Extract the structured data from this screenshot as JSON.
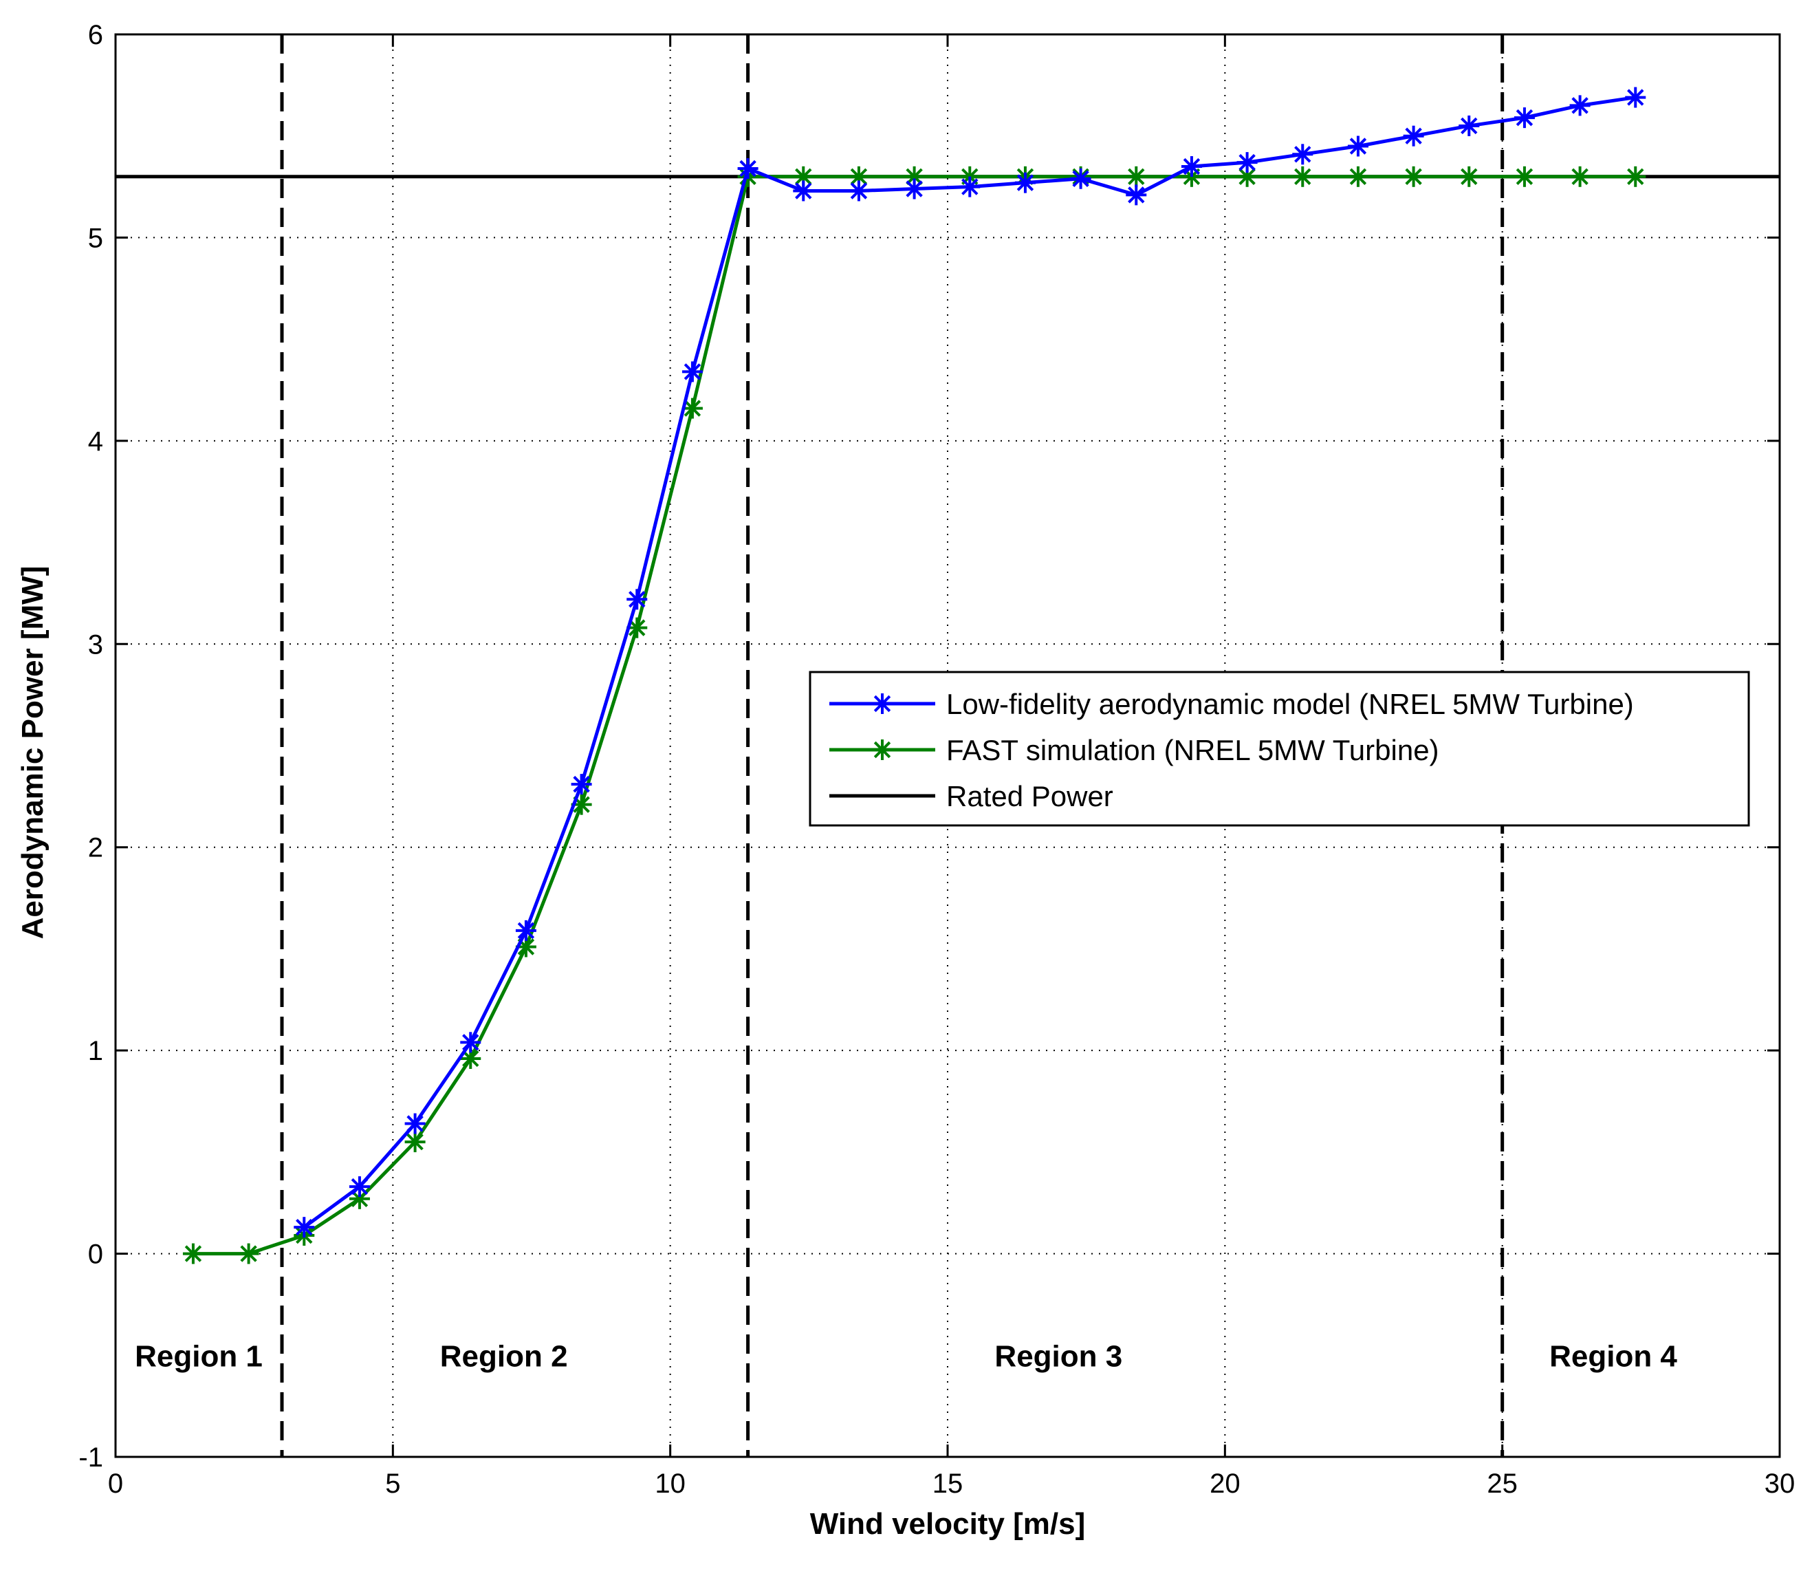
{
  "chart_data": {
    "type": "line",
    "xlabel": "Wind velocity [m/s]",
    "ylabel": "Aerodynamic Power [MW]",
    "xlim": [
      0,
      30
    ],
    "ylim": [
      -1,
      6
    ],
    "xticks": [
      0,
      5,
      10,
      15,
      20,
      25,
      30
    ],
    "yticks": [
      -1,
      0,
      1,
      2,
      3,
      4,
      5,
      6
    ],
    "grid": "dotted",
    "legend_position": "center-right",
    "series": [
      {
        "name": "Low-fidelity aerodynamic model (NREL 5MW Turbine)",
        "color": "#0000ff",
        "marker": "star",
        "x": [
          3.4,
          4.4,
          5.4,
          6.4,
          7.4,
          8.4,
          9.4,
          10.4,
          11.4,
          12.4,
          13.4,
          14.4,
          15.4,
          16.4,
          17.4,
          18.4,
          19.4,
          20.4,
          21.4,
          22.4,
          23.4,
          24.4,
          25.4,
          26.4,
          27.4
        ],
        "y": [
          0.13,
          0.33,
          0.64,
          1.04,
          1.59,
          2.31,
          3.22,
          4.34,
          5.34,
          5.23,
          5.23,
          5.24,
          5.25,
          5.27,
          5.29,
          5.21,
          5.35,
          5.37,
          5.41,
          5.45,
          5.5,
          5.55,
          5.59,
          5.65,
          5.69
        ]
      },
      {
        "name": "FAST simulation (NREL 5MW Turbine)",
        "color": "#008000",
        "marker": "star",
        "x": [
          1.4,
          2.4,
          3.4,
          4.4,
          5.4,
          6.4,
          7.4,
          8.4,
          9.4,
          10.4,
          11.4,
          12.4,
          13.4,
          14.4,
          15.4,
          16.4,
          17.4,
          18.4,
          19.4,
          20.4,
          21.4,
          22.4,
          23.4,
          24.4,
          25.4,
          26.4,
          27.4
        ],
        "y": [
          0.0,
          0.0,
          0.09,
          0.27,
          0.55,
          0.96,
          1.51,
          2.21,
          3.08,
          4.16,
          5.3,
          5.3,
          5.3,
          5.3,
          5.3,
          5.3,
          5.3,
          5.3,
          5.3,
          5.3,
          5.3,
          5.3,
          5.3,
          5.3,
          5.3,
          5.3,
          5.3
        ]
      },
      {
        "name": "Rated Power",
        "color": "#000000",
        "marker": "none",
        "x": [
          0,
          30
        ],
        "y": [
          5.3,
          5.3
        ]
      }
    ],
    "region_boundaries": [
      3,
      11.4,
      25
    ],
    "regions": [
      {
        "label": "Region 1",
        "x": 1.5
      },
      {
        "label": "Region 2",
        "x": 7
      },
      {
        "label": "Region 3",
        "x": 17
      },
      {
        "label": "Region 4",
        "x": 27
      }
    ],
    "region_label_y": -0.5
  }
}
